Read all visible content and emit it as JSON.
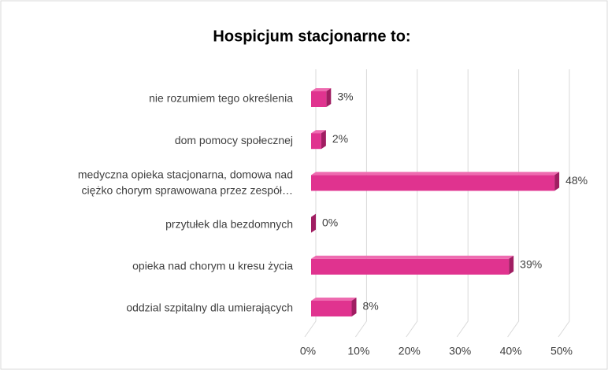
{
  "chart_data": {
    "type": "bar",
    "orientation": "horizontal",
    "title": "Hospicjum stacjonarne to:",
    "categories": [
      "nie rozumiem tego określenia",
      "dom pomocy społecznej",
      "medyczna opieka stacjonarna, domowa nad\nciężko chorym sprawowana przez zespół…",
      "przytułek dla bezdomnych",
      "opieka nad chorym u kresu życia",
      "oddzial szpitalny dla umierających"
    ],
    "values": [
      3,
      2,
      48,
      0,
      39,
      8
    ],
    "value_labels": [
      "3%",
      "2%",
      "48%",
      "0%",
      "39%",
      "8%"
    ],
    "color": "#e0338f",
    "xlim": [
      0,
      50
    ],
    "xticks": [
      {
        "value": 0,
        "label": "0%"
      },
      {
        "value": 10,
        "label": "10%"
      },
      {
        "value": 20,
        "label": "20%"
      },
      {
        "value": 30,
        "label": "30%"
      },
      {
        "value": 40,
        "label": "40%"
      },
      {
        "value": 50,
        "label": "50%"
      }
    ],
    "grid": true
  }
}
